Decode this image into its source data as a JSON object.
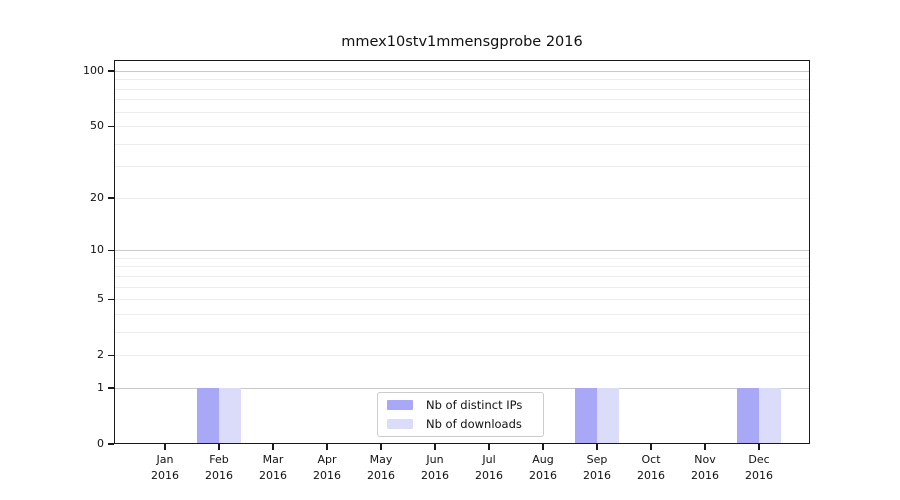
{
  "figure": {
    "background": "#ffffff"
  },
  "chart_data": {
    "type": "bar",
    "title": "mmex10stv1mmensgprobe 2016",
    "categories": [
      "Jan",
      "Feb",
      "Mar",
      "Apr",
      "May",
      "Jun",
      "Jul",
      "Aug",
      "Sep",
      "Oct",
      "Nov",
      "Dec"
    ],
    "category_year": "2016",
    "series": [
      {
        "name": "Nb of distinct IPs",
        "color": "#a8a8f6",
        "values": [
          0,
          1,
          0,
          0,
          0,
          0,
          0,
          0,
          1,
          0,
          0,
          1
        ]
      },
      {
        "name": "Nb of downloads",
        "color": "#dbdbfa",
        "values": [
          0,
          1,
          0,
          0,
          0,
          0,
          0,
          0,
          1,
          0,
          0,
          1
        ]
      }
    ],
    "xlabel": "",
    "ylabel": "",
    "yscale": "log10(1+x)",
    "yticks": [
      0,
      1,
      2,
      5,
      10,
      20,
      50,
      100
    ],
    "ylim": [
      0,
      115
    ],
    "grid": {
      "orientation": "horizontal",
      "major_values": [
        1,
        10,
        100
      ],
      "minor_values": [
        2,
        3,
        4,
        5,
        6,
        7,
        8,
        9,
        20,
        30,
        40,
        50,
        60,
        70,
        80,
        90
      ],
      "major_color": "#c9c9c9",
      "minor_color": "#ededed"
    },
    "legend_position": "bottom-center"
  },
  "colors": {
    "axis": "#1a1a1a",
    "text": "#111111",
    "legend_border": "#cccccc"
  }
}
